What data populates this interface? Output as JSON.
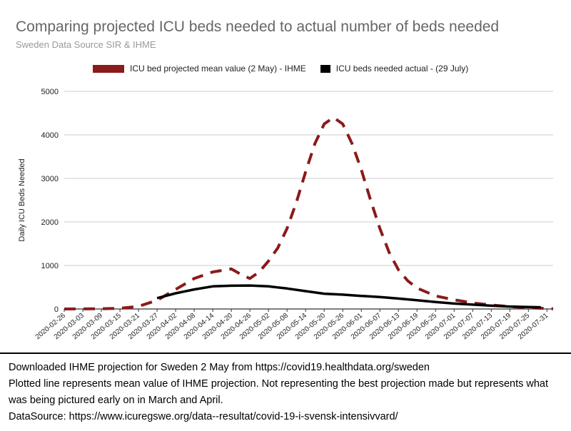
{
  "chart_data": {
    "type": "line",
    "title": "Comparing projected ICU beds needed to actual number of beds needed",
    "subtitle": "Sweden Data Source SIR & IHME",
    "ylabel": "Daily ICU Beds Needed",
    "xlabel": "",
    "ylim": [
      0,
      5000
    ],
    "yticks": [
      "0",
      "1000",
      "2000",
      "3000",
      "4000",
      "5000"
    ],
    "x_start": "2020-02-26",
    "x_end": "2020-08-02",
    "xticks": [
      "2020-02-26",
      "2020-03-03",
      "2020-03-09",
      "2020-03-15",
      "2020-03-21",
      "2020-03-27",
      "2020-04-02",
      "2020-04-08",
      "2020-04-14",
      "2020-04-20",
      "2020-04-26",
      "2020-05-02",
      "2020-05-08",
      "2020-05-14",
      "2020-05-20",
      "2020-05-26",
      "2020-06-01",
      "2020-06-07",
      "2020-06-13",
      "2020-06-19",
      "2020-06-25",
      "2020-07-01",
      "2020-07-07",
      "2020-07-13",
      "2020-07-19",
      "2020-07-25",
      "2020-07-31"
    ],
    "grid": true,
    "legend_position": "top",
    "series": [
      {
        "name": "ICU bed projected mean value (2 May) - IHME",
        "color": "#8b1a1a",
        "style": "dashed",
        "points": [
          [
            "2020-02-26",
            0
          ],
          [
            "2020-03-09",
            5
          ],
          [
            "2020-03-15",
            15
          ],
          [
            "2020-03-21",
            60
          ],
          [
            "2020-03-27",
            200
          ],
          [
            "2020-04-02",
            450
          ],
          [
            "2020-04-08",
            700
          ],
          [
            "2020-04-14",
            850
          ],
          [
            "2020-04-20",
            920
          ],
          [
            "2020-04-23",
            800
          ],
          [
            "2020-04-26",
            700
          ],
          [
            "2020-04-29",
            850
          ],
          [
            "2020-05-02",
            1100
          ],
          [
            "2020-05-05",
            1400
          ],
          [
            "2020-05-08",
            1850
          ],
          [
            "2020-05-11",
            2450
          ],
          [
            "2020-05-14",
            3150
          ],
          [
            "2020-05-17",
            3800
          ],
          [
            "2020-05-20",
            4250
          ],
          [
            "2020-05-23",
            4400
          ],
          [
            "2020-05-26",
            4250
          ],
          [
            "2020-05-29",
            3800
          ],
          [
            "2020-06-01",
            3200
          ],
          [
            "2020-06-04",
            2500
          ],
          [
            "2020-06-07",
            1850
          ],
          [
            "2020-06-10",
            1300
          ],
          [
            "2020-06-13",
            900
          ],
          [
            "2020-06-16",
            650
          ],
          [
            "2020-06-19",
            480
          ],
          [
            "2020-06-25",
            300
          ],
          [
            "2020-07-01",
            210
          ],
          [
            "2020-07-07",
            140
          ],
          [
            "2020-07-13",
            90
          ],
          [
            "2020-07-19",
            55
          ],
          [
            "2020-07-25",
            30
          ],
          [
            "2020-07-31",
            10
          ],
          [
            "2020-08-02",
            5
          ]
        ]
      },
      {
        "name": "ICU beds needed actual - (29 July)",
        "color": "#000000",
        "style": "solid",
        "points": [
          [
            "2020-03-27",
            250
          ],
          [
            "2020-04-02",
            360
          ],
          [
            "2020-04-08",
            450
          ],
          [
            "2020-04-14",
            520
          ],
          [
            "2020-04-20",
            535
          ],
          [
            "2020-04-26",
            540
          ],
          [
            "2020-05-02",
            520
          ],
          [
            "2020-05-08",
            470
          ],
          [
            "2020-05-14",
            410
          ],
          [
            "2020-05-20",
            350
          ],
          [
            "2020-05-26",
            330
          ],
          [
            "2020-06-01",
            300
          ],
          [
            "2020-06-07",
            275
          ],
          [
            "2020-06-13",
            240
          ],
          [
            "2020-06-19",
            200
          ],
          [
            "2020-06-25",
            160
          ],
          [
            "2020-07-01",
            125
          ],
          [
            "2020-07-07",
            100
          ],
          [
            "2020-07-13",
            75
          ],
          [
            "2020-07-19",
            55
          ],
          [
            "2020-07-25",
            45
          ],
          [
            "2020-07-29",
            40
          ]
        ]
      }
    ]
  },
  "notes": {
    "line1": "Downloaded IHME projection for Sweden 2 May from https://covid19.healthdata.org/sweden",
    "line2": "Plotted line represents mean value of IHME projection. Not representing the best projection made but represents what was being pictured early on in March and April.",
    "line3": "DataSource: https://www.icuregswe.org/data--resultat/covid-19-i-svensk-intensivvard/"
  }
}
